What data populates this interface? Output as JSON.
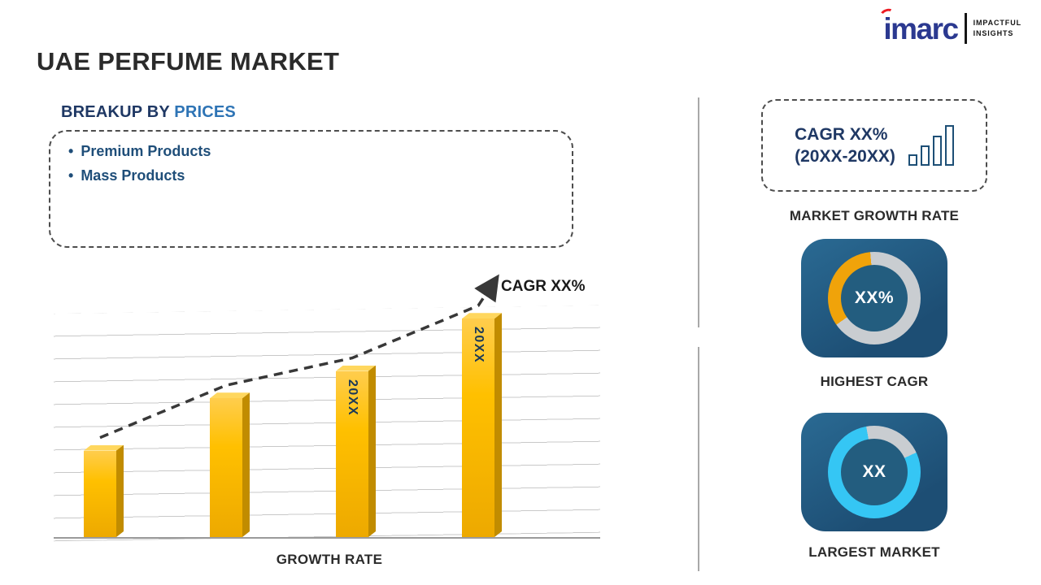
{
  "header": {
    "title": "UAE PERFUME MARKET"
  },
  "logo": {
    "brand": "imarc",
    "tagline": [
      "IMPACTFUL",
      "INSIGHTS"
    ],
    "brand_color": "#2b3990",
    "accent_color": "#ec1c24"
  },
  "breakup": {
    "heading_prefix": "BREAKUP BY ",
    "heading_highlight": "PRICES",
    "items": [
      "Premium Products",
      "Mass Products"
    ]
  },
  "chart_data": [
    {
      "type": "bar",
      "title": "GROWTH RATE",
      "xlabel": "GROWTH RATE",
      "categories": [
        "",
        "",
        "20XX",
        "20XX"
      ],
      "values": [
        38,
        61,
        73,
        96
      ],
      "ylim": [
        0,
        100
      ],
      "grid": true,
      "legend": false,
      "bar_color": "#FFC000",
      "trend_label": "CAGR XX%",
      "trend_style": "dashed-arrow-up"
    },
    {
      "type": "pie",
      "subtype": "donut",
      "caption": "HIGHEST CAGR",
      "center_text": "XX%",
      "segment_color": "#F0A30A",
      "track_color": "#C9CDD1",
      "start_deg": 235,
      "sweep_deg": 120
    },
    {
      "type": "pie",
      "subtype": "donut",
      "caption": "LARGEST MARKET",
      "center_text": "XX",
      "segment_color": "#C9CDD1",
      "track_color": "#35C6F4",
      "start_deg": 350,
      "sweep_deg": 75
    }
  ],
  "right_panel": {
    "growth_box": {
      "line1": "CAGR XX%",
      "line2": "(20XX-20XX)"
    },
    "growth_caption": "MARKET GROWTH RATE",
    "highest_cagr_caption": "HIGHEST CAGR",
    "largest_market_caption": "LARGEST MARKET",
    "tile_color": "#1F5578"
  }
}
